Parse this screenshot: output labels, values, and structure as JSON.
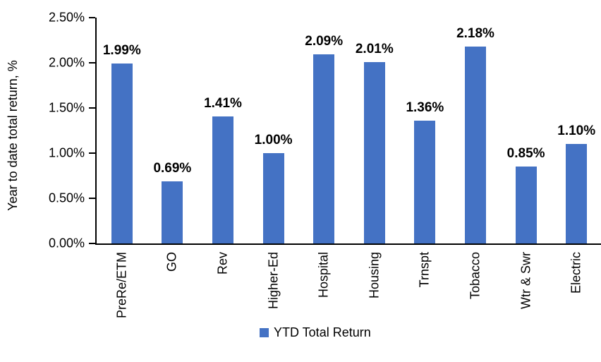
{
  "chart_data": {
    "type": "bar",
    "title": "",
    "xlabel": "",
    "ylabel": "Year to date total return, %",
    "categories": [
      "PreRe/ETM",
      "GO",
      "Rev",
      "Higher-Ed",
      "Hospital",
      "Housing",
      "Trnspt",
      "Tobacco",
      "Wtr & Swr",
      "Electric"
    ],
    "series": [
      {
        "name": "YTD Total Return",
        "values": [
          1.99,
          0.69,
          1.41,
          1.0,
          2.09,
          2.01,
          1.36,
          2.18,
          0.85,
          1.1
        ],
        "labels": [
          "1.99%",
          "0.69%",
          "1.41%",
          "1.00%",
          "2.09%",
          "2.01%",
          "1.36%",
          "2.18%",
          "0.85%",
          "1.10%"
        ],
        "color": "#4472C4"
      }
    ],
    "ylim": [
      0,
      2.5
    ],
    "yticks": [
      {
        "value": 0.0,
        "label": "0.00%"
      },
      {
        "value": 0.5,
        "label": "0.50%"
      },
      {
        "value": 1.0,
        "label": "1.00%"
      },
      {
        "value": 1.5,
        "label": "1.50%"
      },
      {
        "value": 2.0,
        "label": "2.00%"
      },
      {
        "value": 2.5,
        "label": "2.50%"
      }
    ],
    "grid": false,
    "axis_color": "#000000",
    "text_color": "#000000",
    "legend": {
      "position": "bottom",
      "items": [
        {
          "label": "YTD Total Return",
          "color": "#4472C4"
        }
      ]
    }
  }
}
